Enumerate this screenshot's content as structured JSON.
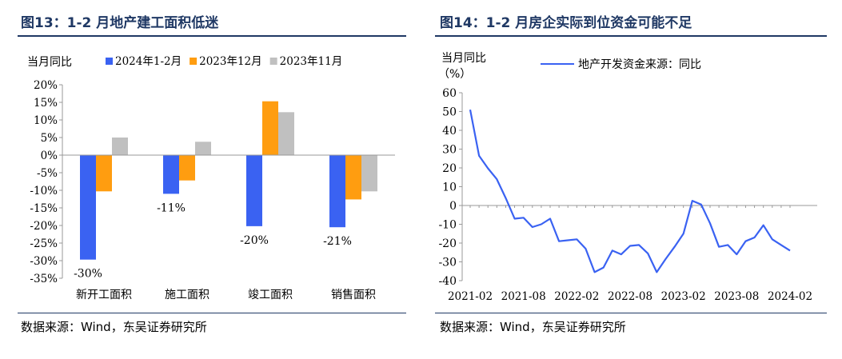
{
  "left": {
    "title": "图13：1-2 月地产建工面积低迷",
    "source": "数据来源：Wind，东吴证券研究所",
    "chart_data": {
      "type": "bar",
      "ylabel": "当月同比",
      "ylim": [
        -35,
        20
      ],
      "yticks": [
        20,
        15,
        10,
        5,
        0,
        -5,
        -10,
        -15,
        -20,
        -25,
        -30,
        -35
      ],
      "ytick_labels": [
        "20%",
        "15%",
        "10%",
        "5%",
        "0%",
        "-5%",
        "-10%",
        "-15%",
        "-20%",
        "-25%",
        "-30%",
        "-35%"
      ],
      "categories": [
        "新开工面积",
        "施工面积",
        "竣工面积",
        "销售面积"
      ],
      "series": [
        {
          "name": "2024年1-2月",
          "color": "#3a62f2",
          "values": [
            -29.7,
            -11.0,
            -20.2,
            -20.5
          ]
        },
        {
          "name": "2023年12月",
          "color": "#ff9d10",
          "values": [
            -10.3,
            -7.2,
            15.3,
            -12.6
          ]
        },
        {
          "name": "2023年11月",
          "color": "#c0c0c0",
          "values": [
            5.0,
            3.8,
            12.2,
            -10.3
          ]
        }
      ],
      "data_labels": [
        "-30%",
        "-11%",
        "-20%",
        "-21%"
      ],
      "legend": "top"
    }
  },
  "right": {
    "title": "图14：1-2 月房企实际到位资金可能不足",
    "source": "数据来源：Wind，东吴证券研究所",
    "chart_data": {
      "type": "line",
      "ylabel_line1": "当月同比",
      "ylabel_line2": "（%）",
      "ylim": [
        -40,
        60
      ],
      "yticks": [
        60,
        50,
        40,
        30,
        20,
        10,
        0,
        -10,
        -20,
        -30,
        -40
      ],
      "ytick_labels": [
        "60",
        "50",
        "40",
        "30",
        "20",
        "10",
        "0",
        "-10",
        "-20",
        "-30",
        "-40"
      ],
      "xtick_labels": [
        "2021-02",
        "2021-08",
        "2022-02",
        "2022-08",
        "2023-02",
        "2023-08",
        "2024-02"
      ],
      "xtick_index": [
        0,
        6,
        12,
        18,
        24,
        30,
        36
      ],
      "series": [
        {
          "name": "地产开发资金来源：同比",
          "color": "#3a62f2",
          "values": [
            51.0,
            26.5,
            19.8,
            14.0,
            4.0,
            -7.0,
            -6.5,
            -11.5,
            -10.0,
            -7.0,
            -19.0,
            -18.5,
            -18.0,
            -23.0,
            -35.5,
            -33.0,
            -24.0,
            -26.0,
            -21.5,
            -21.0,
            -25.5,
            -35.5,
            -28.5,
            -22.0,
            -15.0,
            2.5,
            0.5,
            -9.5,
            -22.0,
            -21.0,
            -26.0,
            -19.0,
            -17.0,
            -10.5,
            -18.0,
            -21.0,
            -24.0
          ]
        }
      ],
      "legend": "top"
    }
  }
}
